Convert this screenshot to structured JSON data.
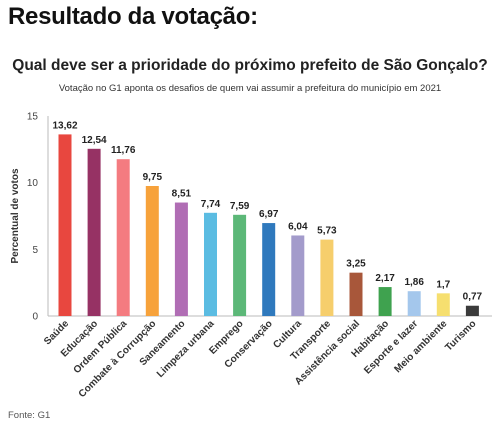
{
  "header": {
    "title": "Resultado da votação:"
  },
  "footer": {
    "source": "Fonte: G1"
  },
  "chart_data": {
    "type": "bar",
    "title": "Qual deve ser a prioridade do próximo prefeito de São Gonçalo?",
    "subtitle": "Votação no G1 aponta os desafios de quem vai assumir a prefeitura do município em 2021",
    "xlabel": "",
    "ylabel": "Percentual de votos",
    "ylim": [
      0,
      15
    ],
    "yticks": [
      0,
      5,
      10,
      15
    ],
    "grid": false,
    "categories": [
      "Saúde",
      "Educação",
      "Ordem Pública",
      "Combate à Corrupção",
      "Saneamento",
      "Limpeza urbana",
      "Emprego",
      "Conservação",
      "Cultura",
      "Transporte",
      "Assistência social",
      "Habitação",
      "Esporte e lazer",
      "Meio ambiente",
      "Turismo"
    ],
    "values": [
      13.62,
      12.54,
      11.76,
      9.75,
      8.51,
      7.74,
      7.59,
      6.97,
      6.04,
      5.73,
      3.25,
      2.17,
      1.86,
      1.7,
      0.77
    ],
    "value_labels": [
      "13,62",
      "12,54",
      "11,76",
      "9,75",
      "8,51",
      "7,74",
      "7,59",
      "6,97",
      "6,04",
      "5,73",
      "3,25",
      "2,17",
      "1,86",
      "1,7",
      "0,77"
    ],
    "colors": [
      "#e8473f",
      "#963264",
      "#f47b80",
      "#f7a23b",
      "#b06db4",
      "#5bbce2",
      "#5cb878",
      "#2f79bd",
      "#a39bcb",
      "#f6ce6c",
      "#a8573a",
      "#3fa24f",
      "#a4c7ec",
      "#f6df6f",
      "#3b3b3b"
    ]
  }
}
